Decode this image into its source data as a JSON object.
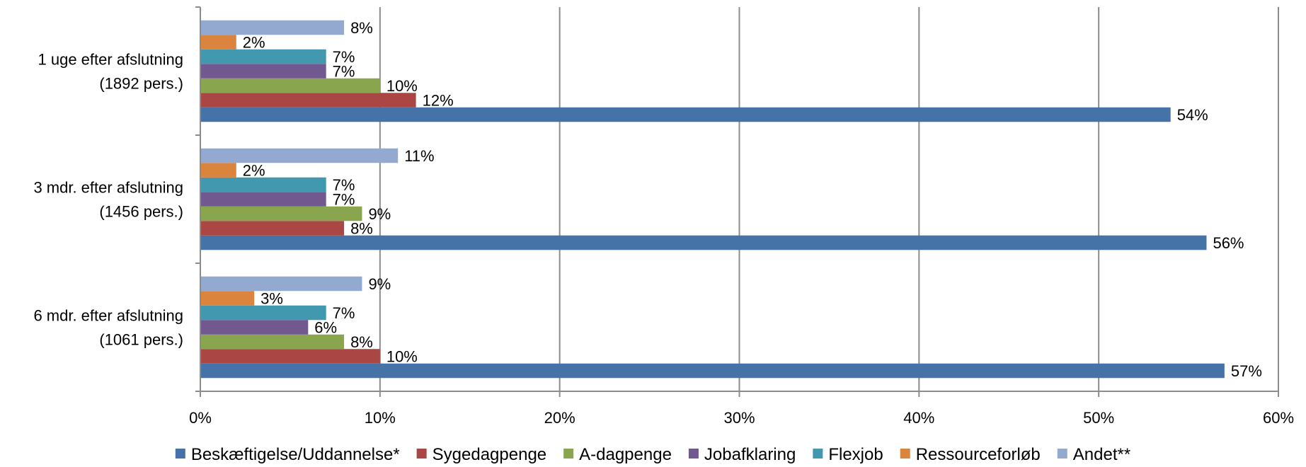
{
  "chart_data": {
    "type": "bar",
    "orientation": "horizontal",
    "categories": [
      [
        "1 uge efter afslutning",
        "(1892 pers.)"
      ],
      [
        "3 mdr. efter afslutning",
        "(1456 pers.)"
      ],
      [
        "6 mdr. efter afslutning",
        "(1061 pers.)"
      ]
    ],
    "series": [
      {
        "name": "Beskæftigelse/Uddannelse*",
        "color": "#4572a7",
        "values": [
          54,
          56,
          57
        ],
        "labels": [
          "54%",
          "56%",
          "57%"
        ]
      },
      {
        "name": "Sygedagpenge",
        "color": "#aa4643",
        "values": [
          12,
          8,
          10
        ],
        "labels": [
          "12%",
          "8%",
          "10%"
        ]
      },
      {
        "name": "A-dagpenge",
        "color": "#89a54e",
        "values": [
          10,
          9,
          8
        ],
        "labels": [
          "10%",
          "9%",
          "8%"
        ]
      },
      {
        "name": "Jobafklaring",
        "color": "#71588f",
        "values": [
          7,
          7,
          6
        ],
        "labels": [
          "7%",
          "7%",
          "6%"
        ]
      },
      {
        "name": "Flexjob",
        "color": "#4198af",
        "values": [
          7,
          7,
          7
        ],
        "labels": [
          "7%",
          "7%",
          "7%"
        ]
      },
      {
        "name": "Ressourceforløb",
        "color": "#db843d",
        "values": [
          2,
          2,
          3
        ],
        "labels": [
          "2%",
          "2%",
          "3%"
        ]
      },
      {
        "name": "Andet**",
        "color": "#93a9cf",
        "values": [
          8,
          11,
          9
        ],
        "labels": [
          "8%",
          "11%",
          "9%"
        ]
      }
    ],
    "xlim": [
      0,
      60
    ],
    "x_ticks": [
      "0%",
      "10%",
      "20%",
      "30%",
      "40%",
      "50%",
      "60%"
    ],
    "grid": true,
    "legend_position": "bottom",
    "title": "",
    "xlabel": "",
    "ylabel": ""
  }
}
